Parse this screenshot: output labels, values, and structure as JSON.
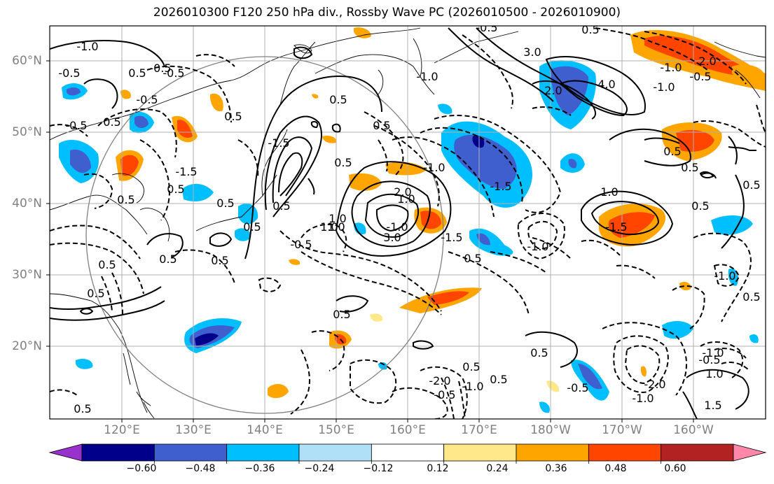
{
  "title": "2026010300 F120 250 hPa div., Rossby Wave PC (2026010500 - 2026010900)",
  "lat_labels": [
    "60°N",
    "50°N",
    "40°N",
    "30°N",
    "20°N"
  ],
  "lon_labels": [
    "120°E",
    "130°E",
    "140°E",
    "150°E",
    "160°E",
    "170°E",
    "180°W",
    "170°W",
    "160°W"
  ],
  "contour_labels": [
    "-1.0",
    "0.5",
    "-0.5",
    "-0.5",
    "-0.5",
    "0.5",
    "-0.5",
    "0.5",
    "0.5",
    "0.5",
    "-1.5",
    "0.5",
    "0.5",
    "0.5",
    "1.0",
    "-1.5",
    "0.5",
    "0.5",
    "0.5",
    "0.5",
    "-0.5",
    "1.0",
    "0.5",
    "0.5",
    "-1.0",
    "1.0",
    "0.5",
    "-0.5",
    "0.5",
    "2.0",
    "3.0",
    "1.0",
    "-1.5",
    "0.5",
    "-1.0",
    "-1.5",
    "-1.0",
    "2.0",
    "4.0",
    "3.0",
    "-1.0",
    "-0.5",
    "0.5",
    "1.0",
    "-1.5",
    "0.5",
    "0.5",
    "-1.0",
    "0.5",
    "0.5",
    "-1.0",
    "2.0",
    "-0.5",
    "0.5",
    "-1.0",
    "0.5",
    "-0.5",
    "-2.0",
    "-1.0",
    "-1.0",
    "-0.5",
    "1.0",
    "1.5",
    "-2.0",
    "0.5",
    "-0.5",
    "-1.0",
    "0.5",
    "0.5"
  ],
  "colorbar": {
    "tick_labels": [
      "−0.60",
      "−0.48",
      "−0.36",
      "−0.24",
      "−0.12",
      "0.12",
      "0.24",
      "0.36",
      "0.48",
      "0.60"
    ],
    "colors": [
      "#9932cc",
      "#00008b",
      "#3f5fcf",
      "#00bfff",
      "#b0e0f8",
      "#ffffff",
      "#ffe88a",
      "#ffa500",
      "#ff4500",
      "#b22222",
      "#ff88aa"
    ]
  }
}
